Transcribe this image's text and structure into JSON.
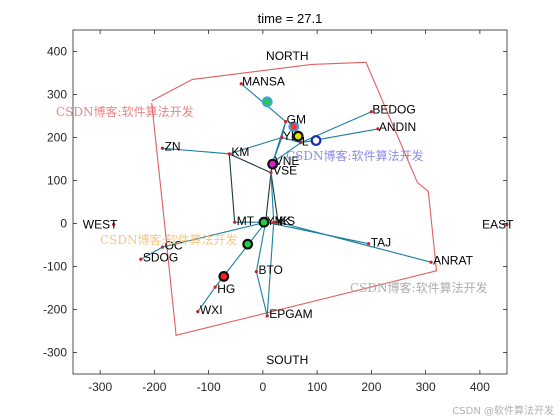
{
  "chart_data": {
    "type": "scatter",
    "title": "time = 27.1",
    "xlabel": "",
    "ylabel": "",
    "xlim": [
      -350,
      450
    ],
    "ylim": [
      -350,
      450
    ],
    "xticks": [
      -300,
      -200,
      -100,
      0,
      100,
      200,
      300,
      400
    ],
    "yticks": [
      -300,
      -200,
      -100,
      0,
      100,
      200,
      300,
      400
    ],
    "grid": false,
    "compass": [
      {
        "text": "NORTH",
        "x": 45,
        "y": 390
      },
      {
        "text": "SOUTH",
        "x": 45,
        "y": -318
      },
      {
        "text": "WEST",
        "x": -300,
        "y": -2
      },
      {
        "text": "EAST",
        "x": 433,
        "y": -2
      }
    ],
    "boundary": [
      [
        -205,
        285
      ],
      [
        -130,
        335
      ],
      [
        90,
        370
      ],
      [
        190,
        375
      ],
      [
        285,
        95
      ],
      [
        305,
        75
      ],
      [
        320,
        -110
      ],
      [
        -160,
        -260
      ],
      [
        -185,
        45
      ],
      [
        -205,
        280
      ]
    ],
    "nodes": [
      {
        "name": "MANSA",
        "x": -40,
        "y": 325
      },
      {
        "name": "GM",
        "x": 42,
        "y": 237
      },
      {
        "name": "BEDOG",
        "x": 200,
        "y": 260
      },
      {
        "name": "ANDIN",
        "x": 212,
        "y": 220
      },
      {
        "name": "ZN",
        "x": -185,
        "y": 175
      },
      {
        "name": "KM",
        "x": -62,
        "y": 162
      },
      {
        "name": "YL",
        "x": 35,
        "y": 200
      },
      {
        "name": "L",
        "x": 70,
        "y": 188
      },
      {
        "name": "VNE",
        "x": 18,
        "y": 142
      },
      {
        "name": "VSE",
        "x": 15,
        "y": 118
      },
      {
        "name": "MT",
        "x": -52,
        "y": 3
      },
      {
        "name": "YN",
        "x": 5,
        "y": 3
      },
      {
        "name": "YK",
        "x": 20,
        "y": 3
      },
      {
        "name": "KS",
        "x": 28,
        "y": 3
      },
      {
        "name": "WEST",
        "x": -275,
        "y": -2
      },
      {
        "name": "EAST",
        "x": 450,
        "y": -2
      },
      {
        "name": "OC",
        "x": -185,
        "y": -55
      },
      {
        "name": "TAJ",
        "x": 195,
        "y": -47
      },
      {
        "name": "SDOG",
        "x": -225,
        "y": -83
      },
      {
        "name": "ANRAT",
        "x": 310,
        "y": -90
      },
      {
        "name": "BTO",
        "x": -12,
        "y": -112
      },
      {
        "name": "HG",
        "x": -88,
        "y": -148
      },
      {
        "name": "WXI",
        "x": -120,
        "y": -205
      },
      {
        "name": "EPGAM",
        "x": 8,
        "y": -215
      }
    ],
    "labels": [
      {
        "text": "MANSA",
        "x": -40,
        "y": 330
      },
      {
        "text": "GM",
        "x": 42,
        "y": 242
      },
      {
        "text": "BEDOG",
        "x": 200,
        "y": 265
      },
      {
        "text": "ANDIN",
        "x": 212,
        "y": 224
      },
      {
        "text": "ZN",
        "x": -183,
        "y": 179
      },
      {
        "text": "KM",
        "x": -60,
        "y": 166
      },
      {
        "text": "YL",
        "x": 35,
        "y": 203
      },
      {
        "text": "L",
        "x": 70,
        "y": 191
      },
      {
        "text": "VNE",
        "x": 20,
        "y": 145
      },
      {
        "text": "VSE",
        "x": 17,
        "y": 123
      },
      {
        "text": "MT",
        "x": -50,
        "y": 6
      },
      {
        "text": "YN",
        "x": 5,
        "y": 6
      },
      {
        "text": "YK",
        "x": 20,
        "y": 6
      },
      {
        "text": "KS",
        "x": 28,
        "y": 6
      },
      {
        "text": "OC",
        "x": -183,
        "y": -51
      },
      {
        "text": "TAJ",
        "x": 197,
        "y": -44
      },
      {
        "text": "SDOG",
        "x": -223,
        "y": -79
      },
      {
        "text": "ANRAT",
        "x": 312,
        "y": -86
      },
      {
        "text": "BTO",
        "x": -10,
        "y": -108
      },
      {
        "text": "HG",
        "x": -86,
        "y": -152
      },
      {
        "text": "WXI",
        "x": -118,
        "y": -201
      },
      {
        "text": "EPGAM",
        "x": 10,
        "y": -211
      }
    ],
    "edges": [
      {
        "from": "MANSA",
        "to": "GM",
        "color": "#1a7fa0"
      },
      {
        "from": "GM",
        "to": "YL",
        "color": "#1a7fa0"
      },
      {
        "from": "YL",
        "to": "KM",
        "color": "#1a7fa0"
      },
      {
        "from": "KM",
        "to": "ZN",
        "color": "#1a7fa0"
      },
      {
        "from": "YL",
        "to": "L",
        "color": "#1a7fa0"
      },
      {
        "from": "L",
        "to": "BEDOG",
        "color": "#1a7fa0"
      },
      {
        "from": "L",
        "to": "ANDIN",
        "color": "#1a7fa0"
      },
      {
        "from": "YL",
        "to": "VNE",
        "color": "#1a7fa0"
      },
      {
        "from": "GM",
        "to": "VNE",
        "color": "#1a7fa0"
      },
      {
        "from": "L",
        "to": "VNE",
        "color": "#1a7fa0"
      },
      {
        "from": "KM",
        "to": "MT",
        "color": "#1a3a3a"
      },
      {
        "from": "KM",
        "to": "VSE",
        "color": "#1a3a3a"
      },
      {
        "from": "VNE",
        "to": "VSE",
        "color": "#1a3a3a"
      },
      {
        "from": "VSE",
        "to": "YN",
        "color": "#1a3a3a"
      },
      {
        "from": "VSE",
        "to": "KS",
        "color": "#1a3a3a"
      },
      {
        "from": "VSE",
        "to": "YK",
        "color": "#1a7fa0"
      },
      {
        "from": "MT",
        "to": "YN",
        "color": "#1a7fa0"
      },
      {
        "from": "YN",
        "to": "KS",
        "color": "#1a7fa0"
      },
      {
        "from": "YN",
        "to": "TAJ",
        "color": "#1a7fa0"
      },
      {
        "from": "KS",
        "to": "ANRAT",
        "color": "#1a7fa0"
      },
      {
        "from": "YN",
        "to": "OC",
        "color": "#1a7fa0"
      },
      {
        "from": "OC",
        "to": "SDOG",
        "color": "#1a7fa0"
      },
      {
        "from": "YN",
        "to": "HG",
        "color": "#1a7fa0"
      },
      {
        "from": "HG",
        "to": "WXI",
        "color": "#1a7fa0"
      },
      {
        "from": "YN",
        "to": "BTO",
        "color": "#1a7fa0"
      },
      {
        "from": "BTO",
        "to": "EPGAM",
        "color": "#1a7fa0"
      },
      {
        "from": "YK",
        "to": "EPGAM",
        "color": "#1a7fa0"
      }
    ],
    "markers": [
      {
        "x": 8,
        "y": 283,
        "fill": "#22cc44",
        "edge": "#3fa7d6"
      },
      {
        "x": 57,
        "y": 225,
        "fill": "#ff3333",
        "edge": "#3fa7d6"
      },
      {
        "x": 65,
        "y": 203,
        "fill": "#e8e000",
        "edge": "#111111"
      },
      {
        "x": 98,
        "y": 193,
        "fill": "#ffffff",
        "edge": "#1a2ab8"
      },
      {
        "x": 18,
        "y": 138,
        "fill": "#dd22cc",
        "edge": "#111111"
      },
      {
        "x": 2,
        "y": 3,
        "fill": "#22cc44",
        "edge": "#111111"
      },
      {
        "x": -28,
        "y": -48,
        "fill": "#22cc44",
        "edge": "#111111"
      },
      {
        "x": -72,
        "y": -123,
        "fill": "#ff2222",
        "edge": "#111111"
      }
    ],
    "colors": {
      "boundary": "#e06060",
      "axis": "#262626",
      "node": "#cc2222"
    }
  },
  "watermarks": {
    "wm1": "CSDN博客:软件算法开发",
    "wm2": "CSDN博客:软件算法开发",
    "wm3": "CSDN博客:软件算法开发",
    "wm4": "CSDN博客:软件算法开发"
  },
  "credit": "CSDN @软件算法开发"
}
